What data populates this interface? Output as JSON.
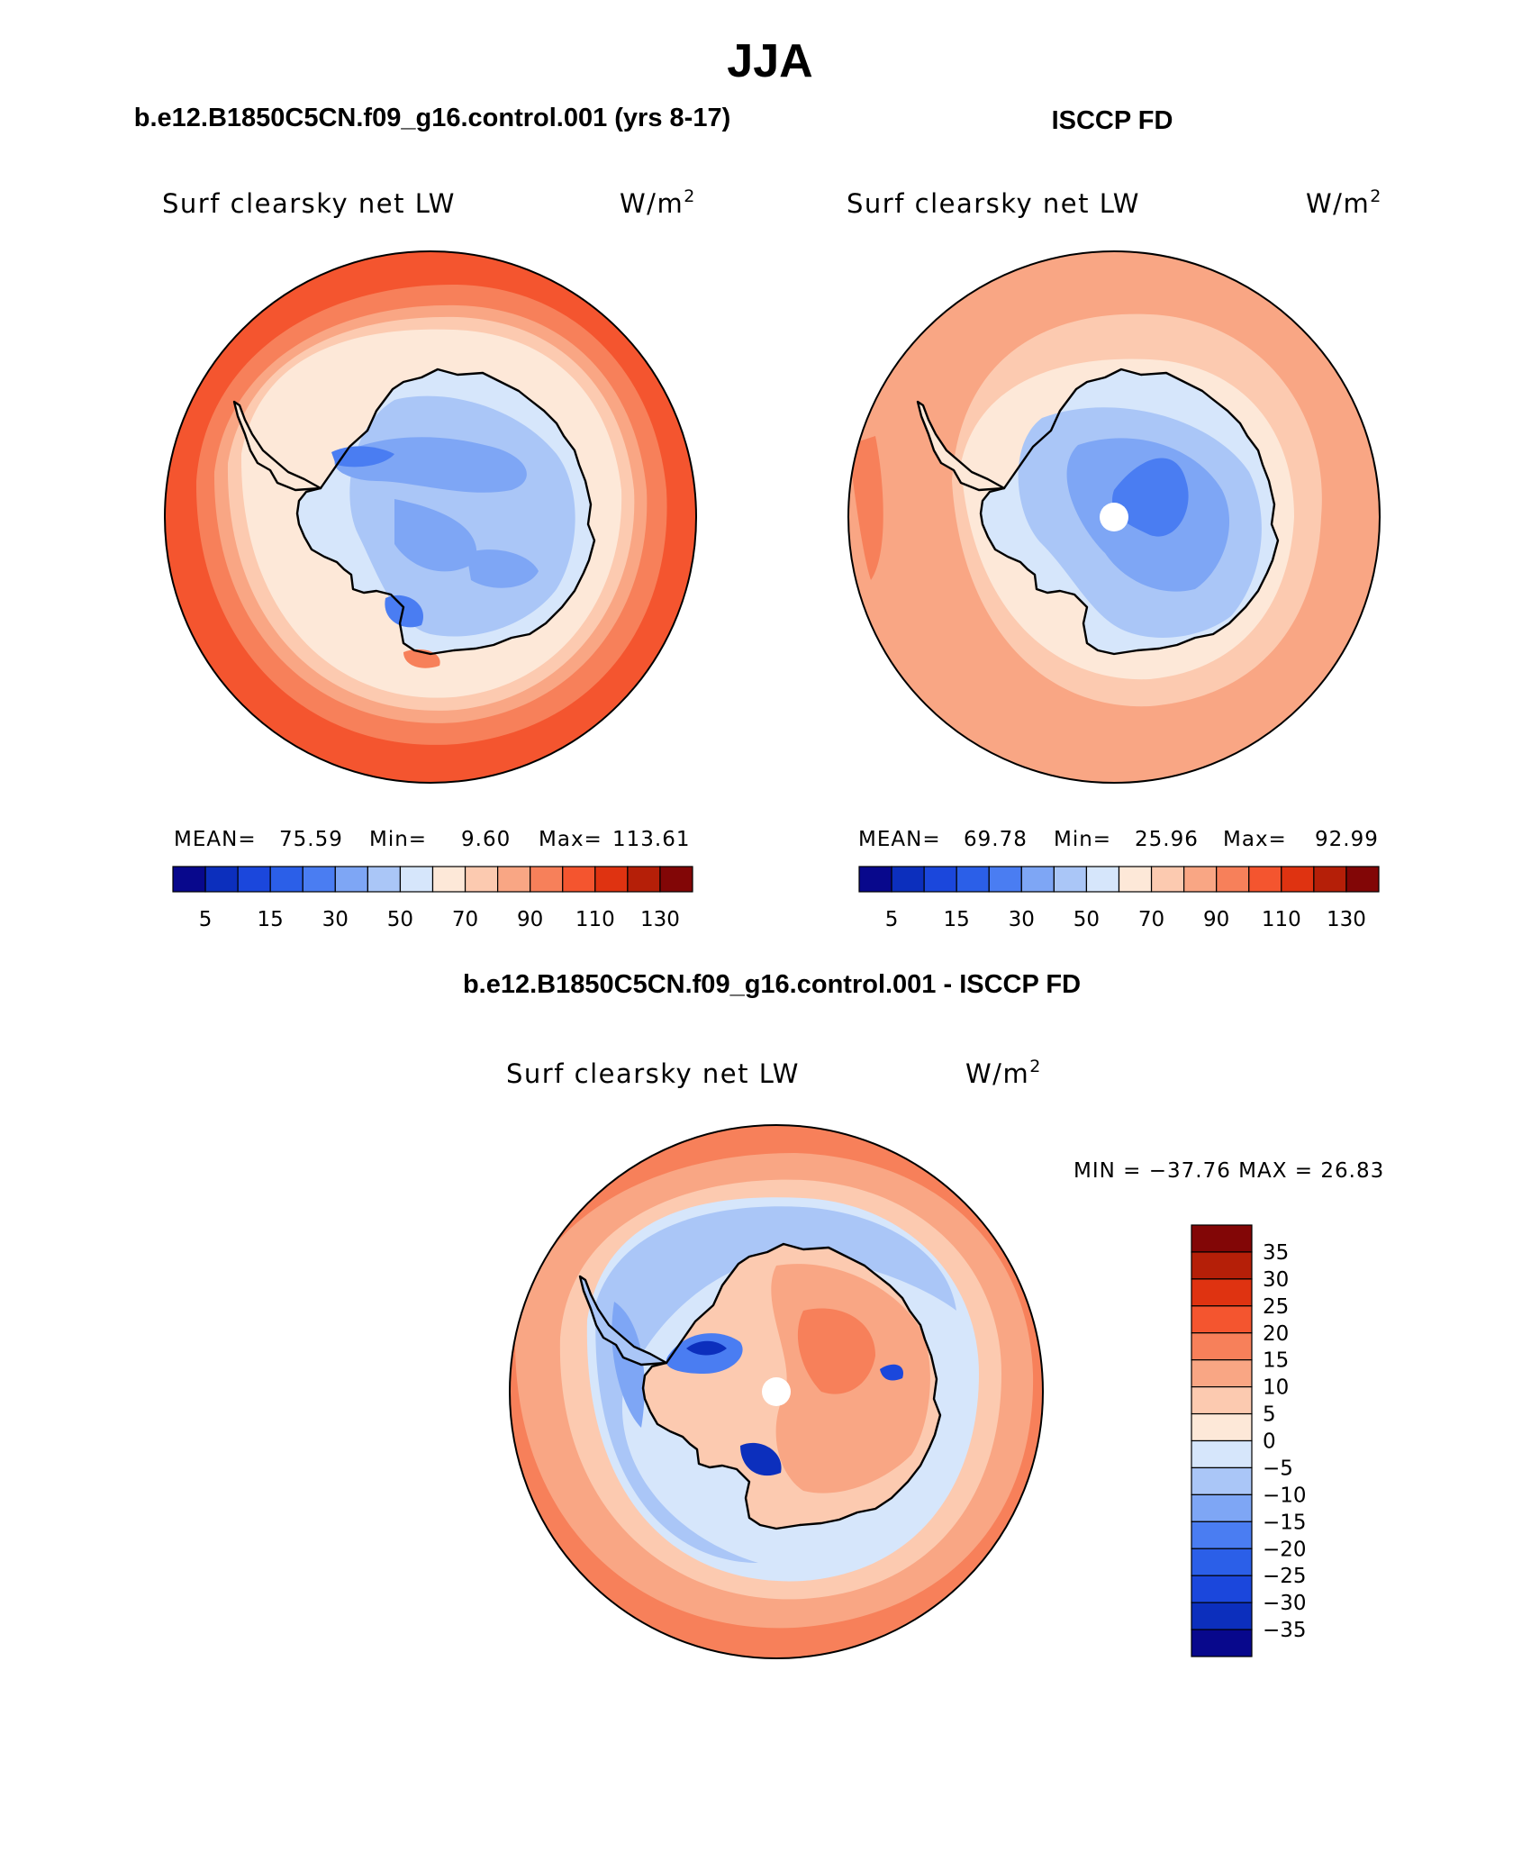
{
  "figure": {
    "season": "JJA",
    "case_title": "b.e12.B1850C5CN.f09_g16.control.001 (yrs 8-17)",
    "obs_title": "ISCCP FD",
    "diff_title": "b.e12.B1850C5CN.f09_g16.control.001 - ISCCP FD"
  },
  "colors": {
    "main_scale": [
      "#08088c",
      "#0c2fbd",
      "#1b47dc",
      "#2b5fe8",
      "#4a7df2",
      "#7ea6f5",
      "#aac6f7",
      "#d6e6fb",
      "#fde8d8",
      "#fccab0",
      "#f9a684",
      "#f7805a",
      "#f4552f",
      "#df3311",
      "#b51f08",
      "#820606"
    ],
    "diff_scale": [
      "#08088c",
      "#0c2fbd",
      "#1b47dc",
      "#2b5fe8",
      "#4a7df2",
      "#7ea6f5",
      "#aac6f7",
      "#d6e6fb",
      "#fde8d8",
      "#fccab0",
      "#f9a684",
      "#f7805a",
      "#f4552f",
      "#df3311",
      "#b51f08",
      "#820606"
    ]
  },
  "panels": [
    {
      "id": "model",
      "variable": "Surf clearsky net LW",
      "units_base": "W/m",
      "units_exp": "2",
      "mean_label": "MEAN=",
      "mean_value": "75.59",
      "min_label": "Min=",
      "min_value": "9.60",
      "max_label": "Max=",
      "max_value": "113.61",
      "ticks": [
        "5",
        "15",
        "30",
        "50",
        "70",
        "90",
        "110",
        "130"
      ]
    },
    {
      "id": "obs",
      "variable": "Surf clearsky net LW",
      "units_base": "W/m",
      "units_exp": "2",
      "mean_label": "MEAN=",
      "mean_value": "69.78",
      "min_label": "Min=",
      "min_value": "25.96",
      "max_label": "Max=",
      "max_value": "92.99",
      "ticks": [
        "5",
        "15",
        "30",
        "50",
        "70",
        "90",
        "110",
        "130"
      ]
    },
    {
      "id": "diff",
      "variable": "Surf clearsky net LW",
      "units_base": "W/m",
      "units_exp": "2",
      "minmax_text": "MIN = −37.76 MAX =   26.83",
      "ticks": [
        "35",
        "30",
        "25",
        "20",
        "15",
        "10",
        "5",
        "0",
        "−5",
        "−10",
        "−15",
        "−20",
        "−25",
        "−30",
        "−35"
      ]
    }
  ]
}
